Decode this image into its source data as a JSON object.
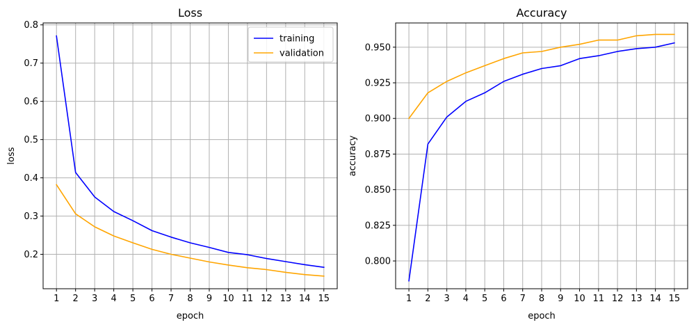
{
  "chart_data": [
    {
      "type": "line",
      "title": "Loss",
      "xlabel": "epoch",
      "ylabel": "loss",
      "x": [
        1,
        2,
        3,
        4,
        5,
        6,
        7,
        8,
        9,
        10,
        11,
        12,
        13,
        14,
        15
      ],
      "xlim": [
        0.3,
        15.7
      ],
      "ylim": [
        0.11,
        0.805
      ],
      "yticks": [
        0.2,
        0.3,
        0.4,
        0.5,
        0.6,
        0.7,
        0.8
      ],
      "ytick_labels": [
        "0.2",
        "0.3",
        "0.4",
        "0.5",
        "0.6",
        "0.7",
        "0.8"
      ],
      "grid": true,
      "legend": "top-right",
      "series": [
        {
          "name": "training",
          "color": "#0000ff",
          "values": [
            0.771,
            0.414,
            0.35,
            0.312,
            0.288,
            0.262,
            0.245,
            0.23,
            0.218,
            0.205,
            0.199,
            0.189,
            0.181,
            0.173,
            0.166
          ]
        },
        {
          "name": "validation",
          "color": "#ffa500",
          "values": [
            0.382,
            0.306,
            0.272,
            0.248,
            0.23,
            0.213,
            0.2,
            0.19,
            0.18,
            0.172,
            0.165,
            0.16,
            0.153,
            0.147,
            0.143
          ]
        }
      ]
    },
    {
      "type": "line",
      "title": "Accuracy",
      "xlabel": "epoch",
      "ylabel": "accuracy",
      "x": [
        1,
        2,
        3,
        4,
        5,
        6,
        7,
        8,
        9,
        10,
        11,
        12,
        13,
        14,
        15
      ],
      "xlim": [
        0.3,
        15.7
      ],
      "ylim": [
        0.7805,
        0.967
      ],
      "yticks": [
        0.8,
        0.825,
        0.85,
        0.875,
        0.9,
        0.925,
        0.95
      ],
      "ytick_labels": [
        "0.800",
        "0.825",
        "0.850",
        "0.875",
        "0.900",
        "0.925",
        "0.950"
      ],
      "grid": true,
      "legend": "none",
      "series": [
        {
          "color": "#0000ff",
          "values": [
            0.786,
            0.882,
            0.901,
            0.912,
            0.918,
            0.926,
            0.931,
            0.935,
            0.937,
            0.942,
            0.944,
            0.947,
            0.949,
            0.95,
            0.953
          ]
        },
        {
          "color": "#ffa500",
          "values": [
            0.9,
            0.918,
            0.926,
            0.932,
            0.937,
            0.942,
            0.946,
            0.947,
            0.95,
            0.952,
            0.955,
            0.955,
            0.958,
            0.959,
            0.959
          ]
        }
      ]
    }
  ]
}
